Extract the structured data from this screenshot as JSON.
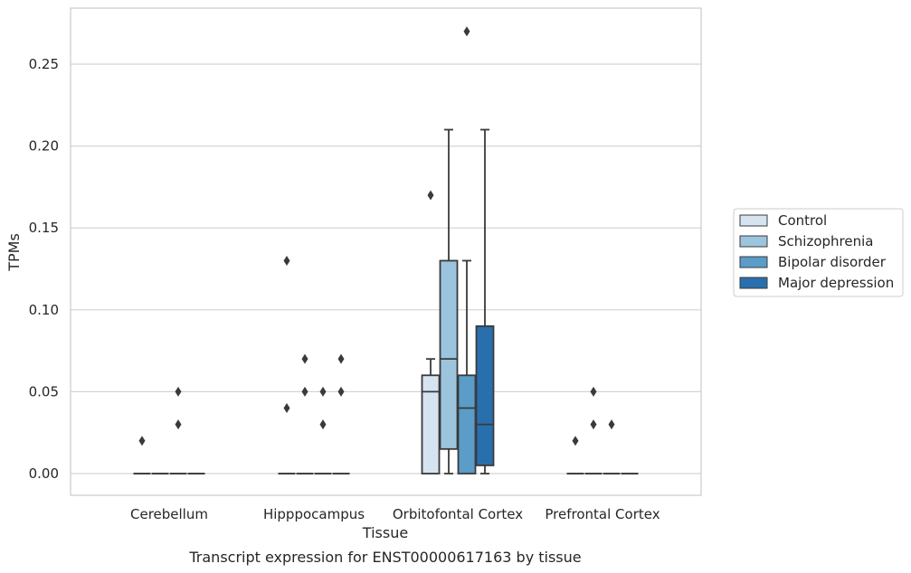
{
  "chart_data": {
    "type": "box",
    "title": "",
    "xlabel": "Tissue",
    "ylabel": "TPMs",
    "caption": "Transcript expression for ENST00000617163 by tissue",
    "ylim": [
      -0.013,
      0.284
    ],
    "yticks": [
      "0.00",
      "0.05",
      "0.10",
      "0.15",
      "0.20",
      "0.25"
    ],
    "grid": "horizontal",
    "legend_position": "right",
    "categories": [
      "Cerebellum",
      "Hipppocampus",
      "Orbitofontal Cortex",
      "Prefrontal Cortex"
    ],
    "series": [
      {
        "name": "Control",
        "color": "#d6e4f1",
        "boxes": [
          {
            "q1": 0,
            "median": 0,
            "q3": 0,
            "whisker_low": 0,
            "whisker_high": 0,
            "outliers": [
              0.02
            ]
          },
          {
            "q1": 0,
            "median": 0,
            "q3": 0,
            "whisker_low": 0,
            "whisker_high": 0,
            "outliers": [
              0.04,
              0.13
            ]
          },
          {
            "q1": 0,
            "median": 0.05,
            "q3": 0.06,
            "whisker_low": 0,
            "whisker_high": 0.07,
            "outliers": [
              0.17
            ]
          },
          {
            "q1": 0,
            "median": 0,
            "q3": 0,
            "whisker_low": 0,
            "whisker_high": 0,
            "outliers": [
              0.02
            ]
          }
        ]
      },
      {
        "name": "Schizophrenia",
        "color": "#9cc4dd",
        "boxes": [
          {
            "q1": 0,
            "median": 0,
            "q3": 0,
            "whisker_low": 0,
            "whisker_high": 0,
            "outliers": []
          },
          {
            "q1": 0,
            "median": 0,
            "q3": 0,
            "whisker_low": 0,
            "whisker_high": 0,
            "outliers": [
              0.05,
              0.07
            ]
          },
          {
            "q1": 0.015,
            "median": 0.07,
            "q3": 0.13,
            "whisker_low": 0,
            "whisker_high": 0.21,
            "outliers": []
          },
          {
            "q1": 0,
            "median": 0,
            "q3": 0,
            "whisker_low": 0,
            "whisker_high": 0,
            "outliers": [
              0.03,
              0.05
            ]
          }
        ]
      },
      {
        "name": "Bipolar disorder",
        "color": "#5b9cc8",
        "boxes": [
          {
            "q1": 0,
            "median": 0,
            "q3": 0,
            "whisker_low": 0,
            "whisker_high": 0,
            "outliers": [
              0.03,
              0.05
            ]
          },
          {
            "q1": 0,
            "median": 0,
            "q3": 0,
            "whisker_low": 0,
            "whisker_high": 0,
            "outliers": [
              0.03,
              0.05
            ]
          },
          {
            "q1": 0,
            "median": 0.04,
            "q3": 0.06,
            "whisker_low": 0,
            "whisker_high": 0.13,
            "outliers": [
              0.27
            ]
          },
          {
            "q1": 0,
            "median": 0,
            "q3": 0,
            "whisker_low": 0,
            "whisker_high": 0,
            "outliers": [
              0.03
            ]
          }
        ]
      },
      {
        "name": "Major depression",
        "color": "#2a6fad",
        "boxes": [
          {
            "q1": 0,
            "median": 0,
            "q3": 0,
            "whisker_low": 0,
            "whisker_high": 0,
            "outliers": []
          },
          {
            "q1": 0,
            "median": 0,
            "q3": 0,
            "whisker_low": 0,
            "whisker_high": 0,
            "outliers": [
              0.05,
              0.07
            ]
          },
          {
            "q1": 0.005,
            "median": 0.03,
            "q3": 0.09,
            "whisker_low": 0,
            "whisker_high": 0.21,
            "outliers": []
          },
          {
            "q1": 0,
            "median": 0,
            "q3": 0,
            "whisker_low": 0,
            "whisker_high": 0,
            "outliers": []
          }
        ]
      }
    ]
  }
}
